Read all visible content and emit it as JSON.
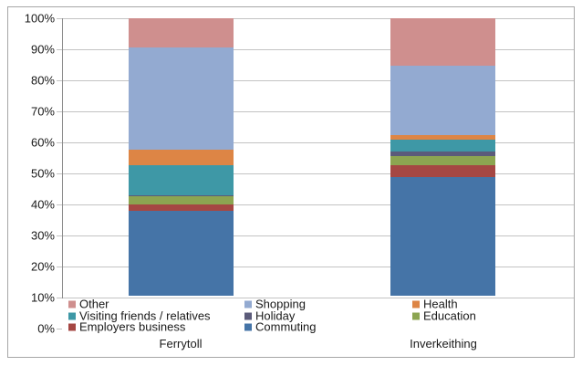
{
  "chart_data": {
    "type": "bar",
    "variant": "stacked-100",
    "title": "",
    "xlabel": "",
    "ylabel": "",
    "categories": [
      "Ferrytoll",
      "Inverkeithing"
    ],
    "series": [
      {
        "name": "Commuting",
        "color": "#4574A7",
        "values": [
          38.0,
          48.8
        ]
      },
      {
        "name": "Employers business",
        "color": "#A54743",
        "values": [
          2.0,
          3.8
        ]
      },
      {
        "name": "Education",
        "color": "#8CA551",
        "values": [
          2.8,
          3.0
        ]
      },
      {
        "name": "Holiday",
        "color": "#5B5B7A",
        "values": [
          0.2,
          1.5
        ]
      },
      {
        "name": "Visiting friends / relatives",
        "color": "#3E98A6",
        "values": [
          9.6,
          3.8
        ]
      },
      {
        "name": "Health",
        "color": "#DD8545",
        "values": [
          5.0,
          1.5
        ]
      },
      {
        "name": "Shopping",
        "color": "#93AAD1",
        "values": [
          33.0,
          22.3
        ]
      },
      {
        "name": "Other",
        "color": "#CF8F8E",
        "values": [
          9.4,
          15.3
        ]
      }
    ],
    "y_axis": {
      "min": 0,
      "max": 100,
      "step": 10,
      "tick_labels": [
        "0%",
        "10%",
        "20%",
        "30%",
        "40%",
        "50%",
        "60%",
        "70%",
        "80%",
        "90%",
        "100%"
      ]
    },
    "grid": "horizontal",
    "legend": {
      "position": "bottom-inside",
      "rows": [
        [
          "Other",
          "Shopping",
          "Health"
        ],
        [
          "Visiting friends / relatives",
          "Holiday",
          "Education"
        ],
        [
          "Employers business",
          "Commuting"
        ]
      ]
    }
  }
}
